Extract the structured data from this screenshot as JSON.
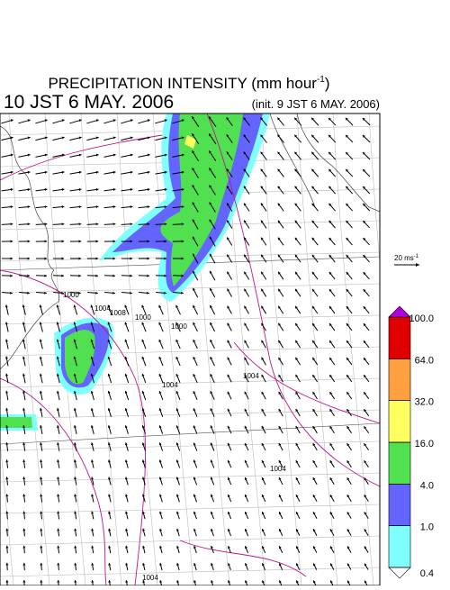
{
  "title": {
    "text": "PRECIPITATION INTENSITY (mm hour",
    "superscript": "-1",
    "close": ")"
  },
  "valid_time": "10 JST 6 MAY. 2006",
  "init_time": "(init. 9 JST 6 MAY. 2006)",
  "wind_scale": {
    "text": "20 ms",
    "superscript": "-1"
  },
  "colorbar": {
    "levels": [
      {
        "value": 0.4,
        "label": "0.4"
      },
      {
        "value": 1,
        "label": "1.0"
      },
      {
        "value": 4,
        "label": "4.0"
      },
      {
        "value": 16,
        "label": "16.0"
      },
      {
        "value": 32,
        "label": "32.0"
      },
      {
        "value": 64,
        "label": "64.0"
      },
      {
        "value": 100,
        "label": "100.0"
      }
    ],
    "colors": [
      "#80ffff",
      "#6464ff",
      "#50e050",
      "#ffff60",
      "#ffa040",
      "#e00000"
    ],
    "under_color": "#ffffff",
    "over_color": "#b000e0"
  },
  "isobar_labels": [
    "1000",
    "1004",
    "1008",
    "1000",
    "1000",
    "1004",
    "1004",
    "1004",
    "1004"
  ]
}
